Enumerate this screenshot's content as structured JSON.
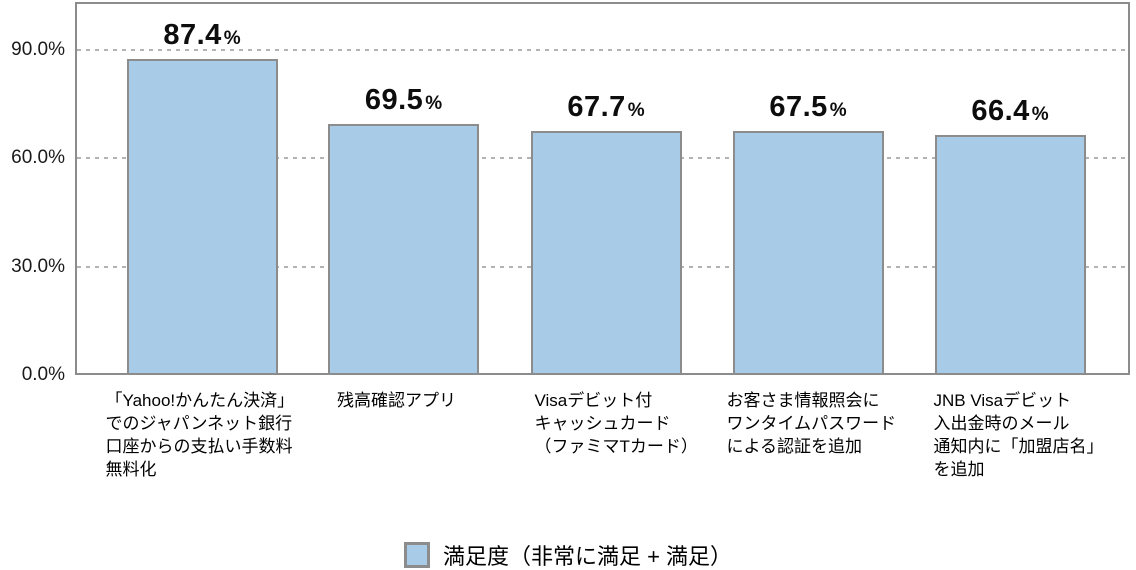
{
  "chart_data": {
    "type": "bar",
    "title": "",
    "xlabel": "",
    "ylabel": "",
    "unit": "%",
    "categories": [
      [
        "「Yahoo!かんたん決済」",
        "でのジャパンネット銀行",
        "口座からの支払い手数料",
        "無料化"
      ],
      [
        "残高確認アプリ"
      ],
      [
        "Visaデビット付",
        "キャッシュカード",
        "（ファミマTカード）"
      ],
      [
        "お客さま情報照会に",
        "ワンタイムパスワード",
        "による認証を追加"
      ],
      [
        "JNB Visaデビット",
        "入出金時のメール",
        "通知内に「加盟店名」",
        "を追加"
      ]
    ],
    "values": [
      87.4,
      69.5,
      67.7,
      67.5,
      66.4
    ],
    "value_labels": [
      "87.4%",
      "69.5%",
      "67.7%",
      "67.5%",
      "66.4%"
    ],
    "ylim": [
      0,
      103.3
    ],
    "yticks": [
      {
        "value": 0,
        "label": "0.0%"
      },
      {
        "value": 30,
        "label": "30.0%"
      },
      {
        "value": 60,
        "label": "60.0%"
      },
      {
        "value": 90,
        "label": "90.0%"
      }
    ],
    "grid": "horizontal dotted lines at 30/60/90, plot framed with solid border",
    "legend": {
      "position": "bottom-center",
      "items": [
        {
          "label": "満足度（非常に満足 + 満足）",
          "swatch_color": "#A8CCE8"
        }
      ]
    },
    "colors": {
      "bar_fill": "#A8CCE8",
      "bar_border": "#8C8C8C",
      "plot_border": "#8C8C8C",
      "gridline": "#B3B3B3",
      "text": "#000000"
    }
  }
}
